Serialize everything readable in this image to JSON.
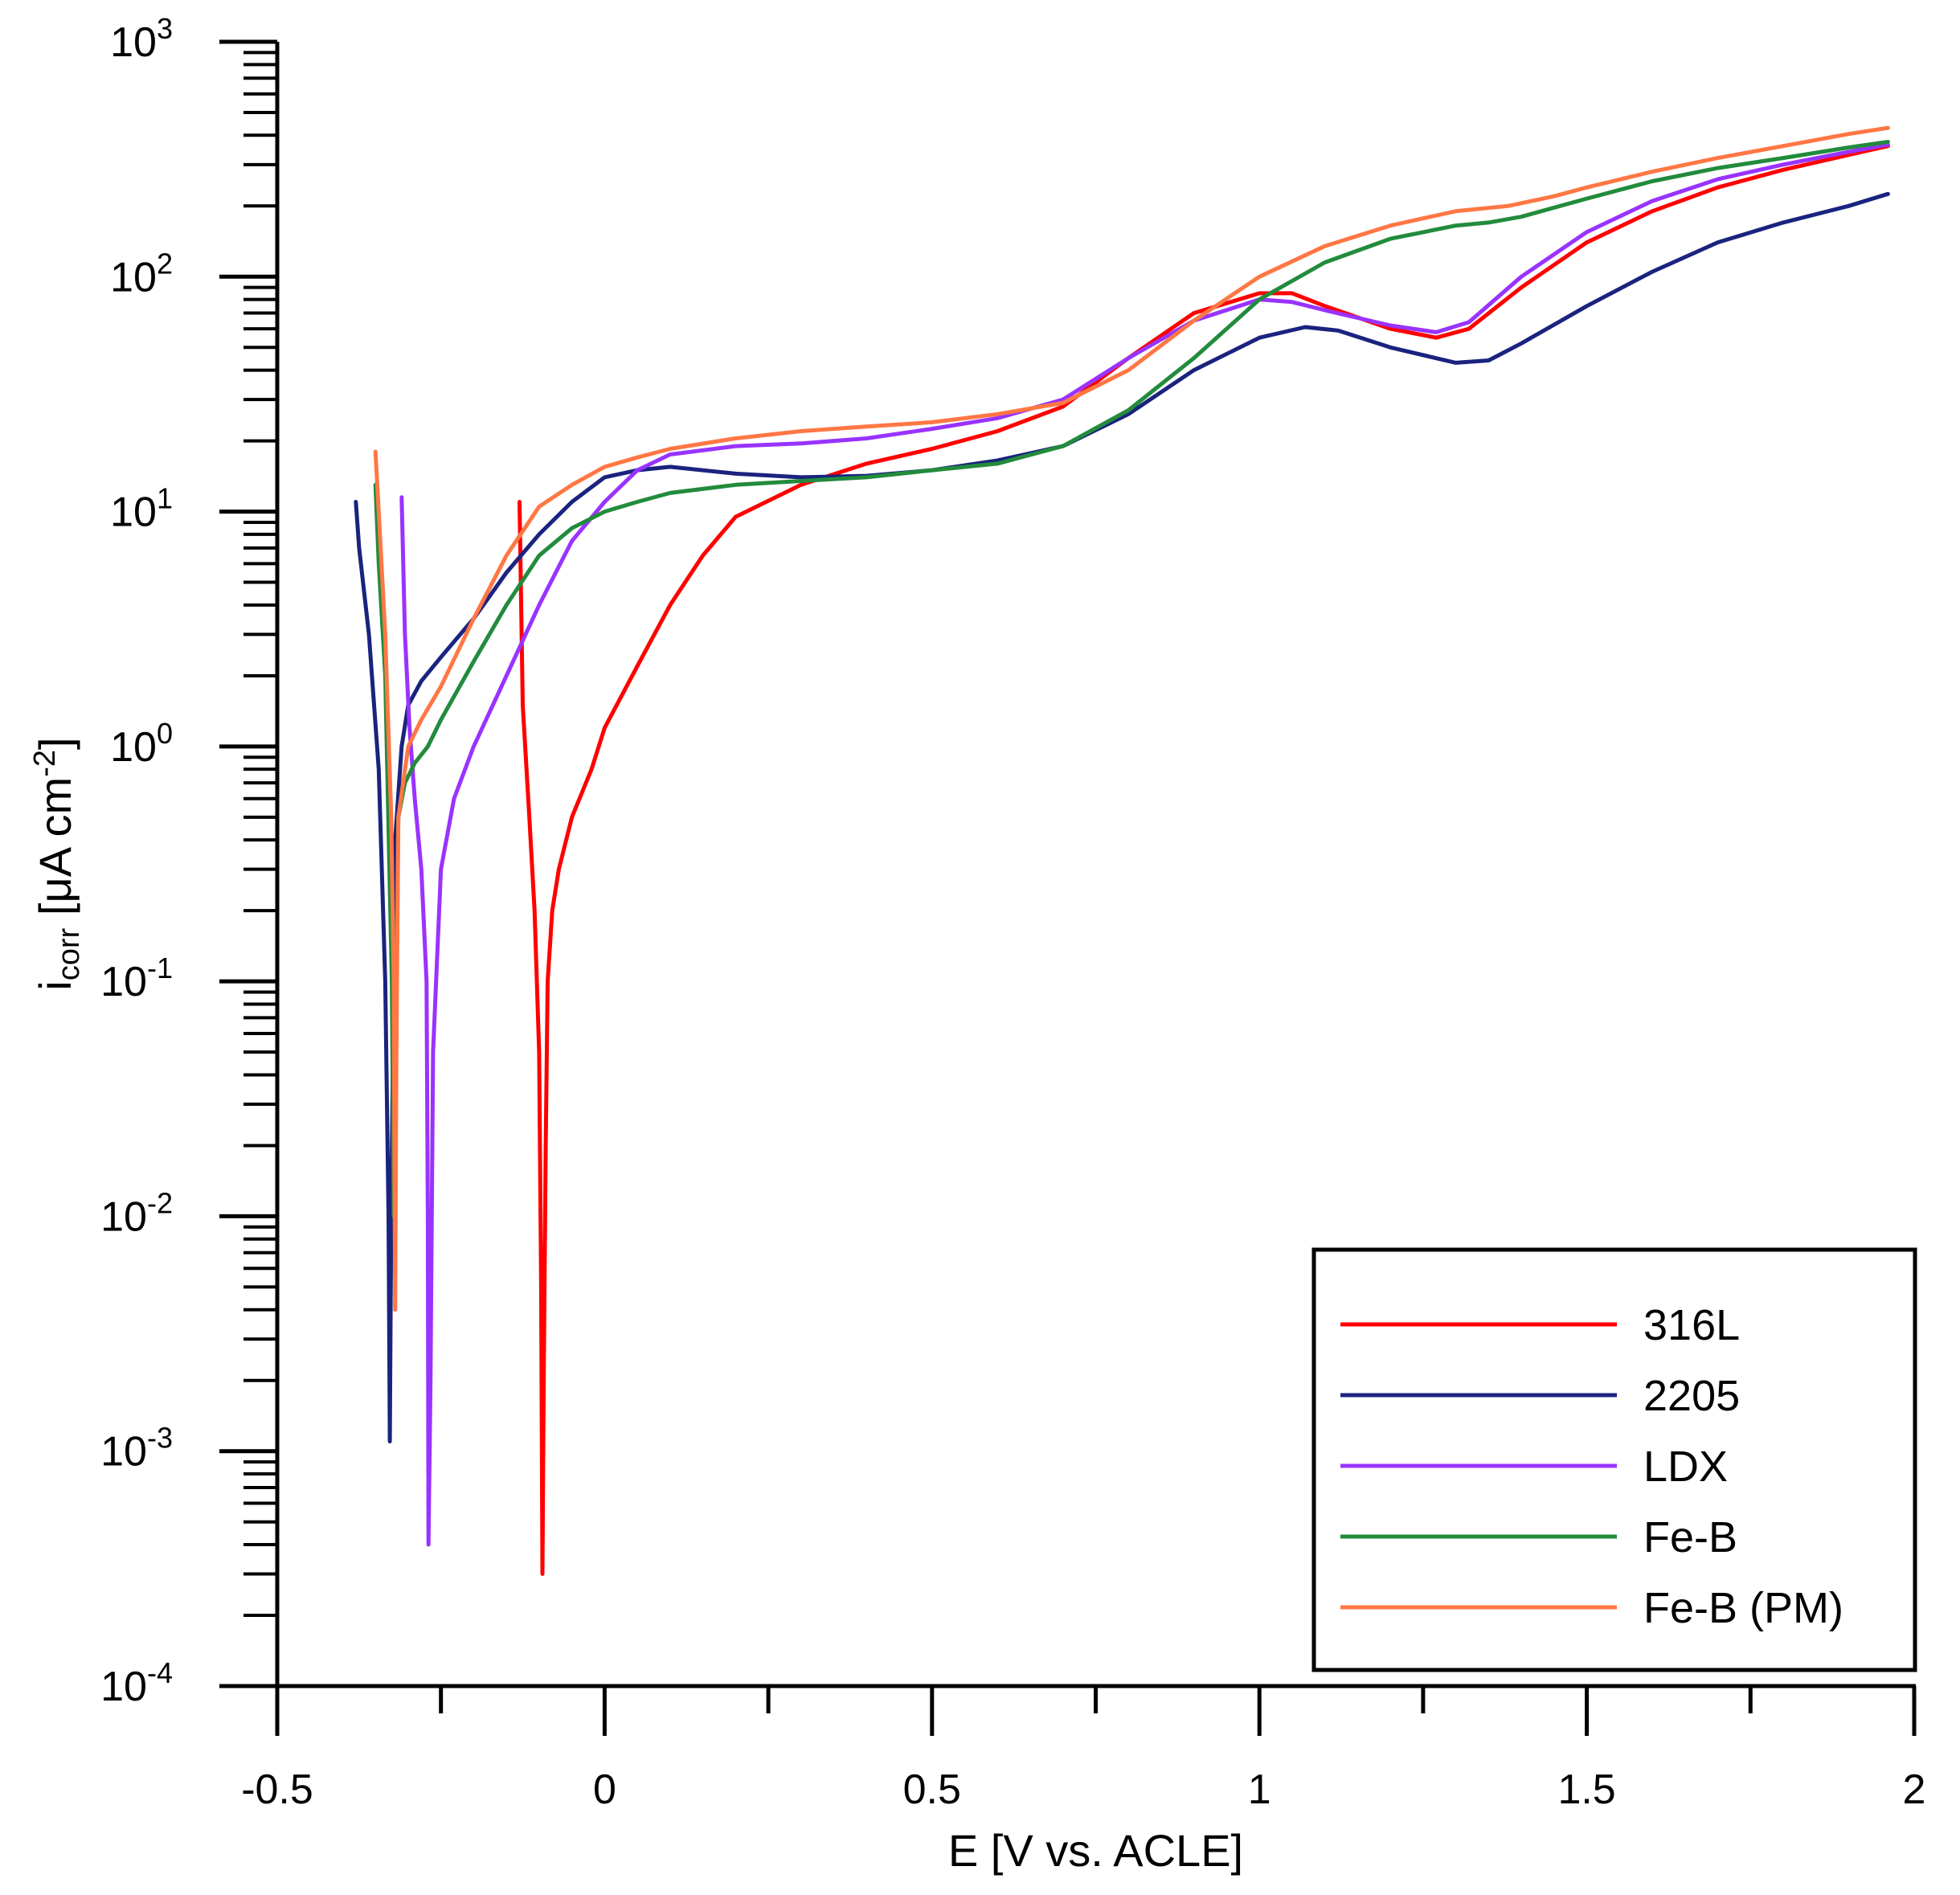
{
  "chart_data": {
    "type": "line",
    "title": "",
    "xlabel": "E [V vs. ACLE]",
    "ylabel": {
      "main": "i",
      "sub": "corr",
      "rest": " [μA cm",
      "sup": "-2",
      "close": "]"
    },
    "xlim": [
      -0.5,
      2
    ],
    "ylim_log10": [
      -4,
      3
    ],
    "x_ticks": [
      {
        "value": -0.5,
        "label": "-0.5"
      },
      {
        "value": 0,
        "label": "0"
      },
      {
        "value": 0.5,
        "label": "0.5"
      },
      {
        "value": 1,
        "label": "1"
      },
      {
        "value": 1.5,
        "label": "1.5"
      },
      {
        "value": 2,
        "label": "2"
      }
    ],
    "y_ticks": [
      {
        "exp": -4,
        "base": "10",
        "sup": "-4"
      },
      {
        "exp": -3,
        "base": "10",
        "sup": "-3"
      },
      {
        "exp": -2,
        "base": "10",
        "sup": "-2"
      },
      {
        "exp": -1,
        "base": "10",
        "sup": "-1"
      },
      {
        "exp": 0,
        "base": "10",
        "sup": "0"
      },
      {
        "exp": 1,
        "base": "10",
        "sup": "1"
      },
      {
        "exp": 2,
        "base": "10",
        "sup": "2"
      },
      {
        "exp": 3,
        "base": "10",
        "sup": "3"
      }
    ],
    "legend_position": "bottom-right",
    "series": [
      {
        "name": "316L",
        "color": "#ff0000",
        "points": [
          [
            -0.13,
            11
          ],
          [
            -0.125,
            1.5
          ],
          [
            -0.115,
            0.5
          ],
          [
            -0.107,
            0.2
          ],
          [
            -0.1,
            0.05
          ],
          [
            -0.097,
            0.005
          ],
          [
            -0.095,
            0.0003
          ],
          [
            -0.093,
            0.002
          ],
          [
            -0.09,
            0.02
          ],
          [
            -0.087,
            0.1
          ],
          [
            -0.08,
            0.2
          ],
          [
            -0.07,
            0.3
          ],
          [
            -0.05,
            0.5
          ],
          [
            -0.02,
            0.8
          ],
          [
            0,
            1.2
          ],
          [
            0.05,
            2.2
          ],
          [
            0.1,
            4
          ],
          [
            0.15,
            6.5
          ],
          [
            0.2,
            9.5
          ],
          [
            0.3,
            13
          ],
          [
            0.4,
            16
          ],
          [
            0.5,
            18.5
          ],
          [
            0.6,
            22
          ],
          [
            0.7,
            28
          ],
          [
            0.8,
            45
          ],
          [
            0.9,
            70
          ],
          [
            1.0,
            85
          ],
          [
            1.05,
            85
          ],
          [
            1.1,
            75
          ],
          [
            1.2,
            60
          ],
          [
            1.27,
            55
          ],
          [
            1.32,
            60
          ],
          [
            1.4,
            90
          ],
          [
            1.5,
            140
          ],
          [
            1.6,
            190
          ],
          [
            1.7,
            240
          ],
          [
            1.8,
            285
          ],
          [
            1.9,
            330
          ],
          [
            1.96,
            360
          ]
        ]
      },
      {
        "name": "2205",
        "color": "#1a237e",
        "points": [
          [
            -0.38,
            11
          ],
          [
            -0.375,
            7
          ],
          [
            -0.36,
            3
          ],
          [
            -0.345,
            0.8
          ],
          [
            -0.335,
            0.1
          ],
          [
            -0.33,
            0.01
          ],
          [
            -0.328,
            0.0011
          ],
          [
            -0.326,
            0.01
          ],
          [
            -0.32,
            0.4
          ],
          [
            -0.31,
            1.0
          ],
          [
            -0.3,
            1.5
          ],
          [
            -0.28,
            1.9
          ],
          [
            -0.25,
            2.4
          ],
          [
            -0.2,
            3.5
          ],
          [
            -0.15,
            5.5
          ],
          [
            -0.1,
            8
          ],
          [
            -0.05,
            11
          ],
          [
            0,
            14
          ],
          [
            0.05,
            15
          ],
          [
            0.1,
            15.5
          ],
          [
            0.2,
            14.5
          ],
          [
            0.3,
            14
          ],
          [
            0.4,
            14.2
          ],
          [
            0.5,
            15
          ],
          [
            0.6,
            16.5
          ],
          [
            0.7,
            19
          ],
          [
            0.8,
            26
          ],
          [
            0.9,
            40
          ],
          [
            1.0,
            55
          ],
          [
            1.07,
            61
          ],
          [
            1.12,
            59
          ],
          [
            1.2,
            50
          ],
          [
            1.3,
            43
          ],
          [
            1.35,
            44
          ],
          [
            1.4,
            52
          ],
          [
            1.5,
            75
          ],
          [
            1.6,
            105
          ],
          [
            1.7,
            140
          ],
          [
            1.8,
            170
          ],
          [
            1.9,
            200
          ],
          [
            1.96,
            225
          ]
        ]
      },
      {
        "name": "LDX",
        "color": "#9933ff",
        "points": [
          [
            -0.31,
            11.5
          ],
          [
            -0.305,
            3
          ],
          [
            -0.298,
            1.2
          ],
          [
            -0.29,
            0.6
          ],
          [
            -0.28,
            0.3
          ],
          [
            -0.272,
            0.1
          ],
          [
            -0.27,
            0.01
          ],
          [
            -0.269,
            0.0004
          ],
          [
            -0.266,
            0.002
          ],
          [
            -0.262,
            0.05
          ],
          [
            -0.25,
            0.3
          ],
          [
            -0.23,
            0.6
          ],
          [
            -0.2,
            1.0
          ],
          [
            -0.15,
            2.0
          ],
          [
            -0.1,
            4.0
          ],
          [
            -0.05,
            7.5
          ],
          [
            0,
            11
          ],
          [
            0.05,
            15
          ],
          [
            0.1,
            17.5
          ],
          [
            0.2,
            19
          ],
          [
            0.3,
            19.5
          ],
          [
            0.4,
            20.5
          ],
          [
            0.5,
            22.5
          ],
          [
            0.6,
            25
          ],
          [
            0.7,
            30
          ],
          [
            0.8,
            45
          ],
          [
            0.9,
            65
          ],
          [
            1.0,
            80
          ],
          [
            1.05,
            78
          ],
          [
            1.1,
            72
          ],
          [
            1.2,
            62
          ],
          [
            1.27,
            58
          ],
          [
            1.32,
            64
          ],
          [
            1.4,
            100
          ],
          [
            1.5,
            155
          ],
          [
            1.6,
            210
          ],
          [
            1.7,
            260
          ],
          [
            1.8,
            300
          ],
          [
            1.9,
            340
          ],
          [
            1.96,
            365
          ]
        ]
      },
      {
        "name": "Fe-B",
        "color": "#228b3c",
        "points": [
          [
            -0.35,
            13
          ],
          [
            -0.345,
            6
          ],
          [
            -0.335,
            2
          ],
          [
            -0.325,
            0.1
          ],
          [
            -0.322,
            0.01
          ],
          [
            -0.32,
            0.05
          ],
          [
            -0.315,
            0.5
          ],
          [
            -0.305,
            0.7
          ],
          [
            -0.29,
            0.85
          ],
          [
            -0.27,
            1.0
          ],
          [
            -0.25,
            1.3
          ],
          [
            -0.2,
            2.3
          ],
          [
            -0.15,
            4
          ],
          [
            -0.1,
            6.5
          ],
          [
            -0.05,
            8.5
          ],
          [
            0,
            10
          ],
          [
            0.05,
            11
          ],
          [
            0.1,
            12
          ],
          [
            0.2,
            13
          ],
          [
            0.3,
            13.5
          ],
          [
            0.4,
            14
          ],
          [
            0.5,
            15
          ],
          [
            0.6,
            16
          ],
          [
            0.7,
            19
          ],
          [
            0.8,
            27
          ],
          [
            0.9,
            45
          ],
          [
            1.0,
            80
          ],
          [
            1.1,
            115
          ],
          [
            1.2,
            145
          ],
          [
            1.3,
            165
          ],
          [
            1.35,
            170
          ],
          [
            1.4,
            180
          ],
          [
            1.5,
            215
          ],
          [
            1.6,
            255
          ],
          [
            1.7,
            290
          ],
          [
            1.8,
            320
          ],
          [
            1.9,
            355
          ],
          [
            1.96,
            375
          ]
        ]
      },
      {
        "name": "Fe-B (PM)",
        "color": "#ff7744",
        "points": [
          [
            -0.35,
            18
          ],
          [
            -0.345,
            10
          ],
          [
            -0.335,
            3
          ],
          [
            -0.326,
            0.5
          ],
          [
            -0.322,
            0.1
          ],
          [
            -0.32,
            0.004
          ],
          [
            -0.318,
            0.05
          ],
          [
            -0.315,
            0.5
          ],
          [
            -0.3,
            1.0
          ],
          [
            -0.28,
            1.3
          ],
          [
            -0.25,
            1.8
          ],
          [
            -0.2,
            3.5
          ],
          [
            -0.15,
            6.5
          ],
          [
            -0.1,
            10.5
          ],
          [
            -0.05,
            13
          ],
          [
            0,
            15.5
          ],
          [
            0.05,
            17
          ],
          [
            0.1,
            18.5
          ],
          [
            0.2,
            20.5
          ],
          [
            0.3,
            22
          ],
          [
            0.4,
            23
          ],
          [
            0.5,
            24
          ],
          [
            0.6,
            26
          ],
          [
            0.7,
            29
          ],
          [
            0.8,
            40
          ],
          [
            0.9,
            65
          ],
          [
            1.0,
            100
          ],
          [
            1.1,
            135
          ],
          [
            1.2,
            165
          ],
          [
            1.3,
            190
          ],
          [
            1.38,
            200
          ],
          [
            1.45,
            220
          ],
          [
            1.5,
            240
          ],
          [
            1.6,
            280
          ],
          [
            1.7,
            320
          ],
          [
            1.8,
            360
          ],
          [
            1.9,
            405
          ],
          [
            1.96,
            430
          ]
        ]
      }
    ]
  }
}
